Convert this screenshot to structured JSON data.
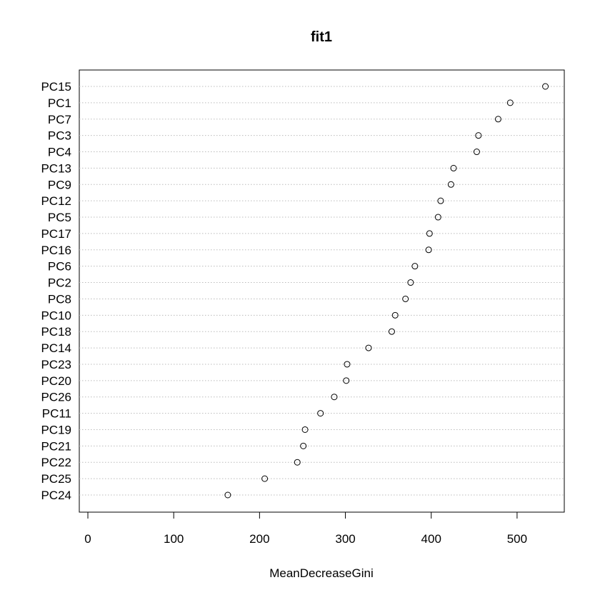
{
  "chart_data": {
    "type": "dotchart",
    "title": "fit1",
    "xlabel": "MeanDecreaseGini",
    "ylabel": "",
    "xlim": [
      -10,
      555
    ],
    "xticks": [
      0,
      100,
      200,
      300,
      400,
      500
    ],
    "grid": "horizontal dotted",
    "categories": [
      "PC15",
      "PC1",
      "PC7",
      "PC3",
      "PC4",
      "PC13",
      "PC9",
      "PC12",
      "PC5",
      "PC17",
      "PC16",
      "PC6",
      "PC2",
      "PC8",
      "PC10",
      "PC18",
      "PC14",
      "PC23",
      "PC20",
      "PC26",
      "PC11",
      "PC19",
      "PC21",
      "PC22",
      "PC25",
      "PC24"
    ],
    "values": [
      533,
      492,
      478,
      455,
      453,
      426,
      423,
      411,
      408,
      398,
      397,
      381,
      376,
      370,
      358,
      354,
      327,
      302,
      301,
      287,
      271,
      253,
      251,
      244,
      206,
      163
    ]
  }
}
